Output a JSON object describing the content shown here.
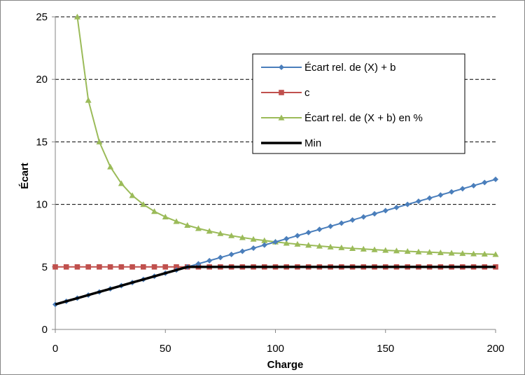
{
  "chart_data": {
    "type": "line",
    "xlabel": "Charge",
    "ylabel": "Écart",
    "xlim": [
      0,
      200
    ],
    "ylim": [
      0,
      25
    ],
    "x_ticks": [
      0,
      50,
      100,
      150,
      200
    ],
    "y_ticks": [
      0,
      5,
      10,
      15,
      20,
      25
    ],
    "grid": "horizontal dashed",
    "legend_position": "top-right",
    "series": [
      {
        "name": "Écart rel. de (X) + b",
        "color": "#4a7ebb",
        "marker": "diamond",
        "x": [
          0,
          5,
          10,
          15,
          20,
          25,
          30,
          35,
          40,
          45,
          50,
          55,
          60,
          65,
          70,
          75,
          80,
          85,
          90,
          95,
          100,
          105,
          110,
          115,
          120,
          125,
          130,
          135,
          140,
          145,
          150,
          155,
          160,
          165,
          170,
          175,
          180,
          185,
          190,
          195,
          200
        ],
        "values": [
          2,
          2.25,
          2.5,
          2.75,
          3,
          3.25,
          3.5,
          3.75,
          4,
          4.25,
          4.5,
          4.75,
          5,
          5.25,
          5.5,
          5.75,
          6,
          6.25,
          6.5,
          6.75,
          7,
          7.25,
          7.5,
          7.75,
          8,
          8.25,
          8.5,
          8.75,
          9,
          9.25,
          9.5,
          9.75,
          10,
          10.25,
          10.5,
          10.75,
          11,
          11.25,
          11.5,
          11.75,
          12
        ]
      },
      {
        "name": "c",
        "color": "#c0504d",
        "marker": "square",
        "x": [
          0,
          5,
          10,
          15,
          20,
          25,
          30,
          35,
          40,
          45,
          50,
          55,
          60,
          65,
          70,
          75,
          80,
          85,
          90,
          95,
          100,
          105,
          110,
          115,
          120,
          125,
          130,
          135,
          140,
          145,
          150,
          155,
          160,
          165,
          170,
          175,
          180,
          185,
          190,
          195,
          200
        ],
        "values": [
          5,
          5,
          5,
          5,
          5,
          5,
          5,
          5,
          5,
          5,
          5,
          5,
          5,
          5,
          5,
          5,
          5,
          5,
          5,
          5,
          5,
          5,
          5,
          5,
          5,
          5,
          5,
          5,
          5,
          5,
          5,
          5,
          5,
          5,
          5,
          5,
          5,
          5,
          5,
          5,
          5
        ]
      },
      {
        "name": "Écart rel. de (X + b) en %",
        "color": "#9bbb59",
        "marker": "triangle",
        "x": [
          10,
          15,
          20,
          25,
          30,
          35,
          40,
          45,
          50,
          55,
          60,
          65,
          70,
          75,
          80,
          85,
          90,
          95,
          100,
          105,
          110,
          115,
          120,
          125,
          130,
          135,
          140,
          145,
          150,
          155,
          160,
          165,
          170,
          175,
          180,
          185,
          190,
          195,
          200
        ],
        "values": [
          25,
          18.33,
          15,
          13,
          11.67,
          10.71,
          10,
          9.44,
          9,
          8.64,
          8.33,
          8.08,
          7.86,
          7.67,
          7.5,
          7.35,
          7.22,
          7.11,
          7,
          6.9,
          6.82,
          6.74,
          6.67,
          6.6,
          6.54,
          6.48,
          6.43,
          6.38,
          6.33,
          6.29,
          6.25,
          6.21,
          6.18,
          6.14,
          6.11,
          6.08,
          6.05,
          6.03,
          6
        ]
      },
      {
        "name": "Min",
        "color": "#000000",
        "marker": "none",
        "x": [
          0,
          5,
          10,
          15,
          20,
          25,
          30,
          35,
          40,
          45,
          50,
          55,
          60,
          65,
          70,
          75,
          80,
          85,
          90,
          95,
          100,
          105,
          110,
          115,
          120,
          125,
          130,
          135,
          140,
          145,
          150,
          155,
          160,
          165,
          170,
          175,
          180,
          185,
          190,
          195,
          200
        ],
        "values": [
          2,
          2.25,
          2.5,
          2.75,
          3,
          3.25,
          3.5,
          3.75,
          4,
          4.25,
          4.5,
          4.75,
          5,
          5,
          5,
          5,
          5,
          5,
          5,
          5,
          5,
          5,
          5,
          5,
          5,
          5,
          5,
          5,
          5,
          5,
          5,
          5,
          5,
          5,
          5,
          5,
          5,
          5,
          5,
          5,
          5
        ]
      }
    ]
  }
}
